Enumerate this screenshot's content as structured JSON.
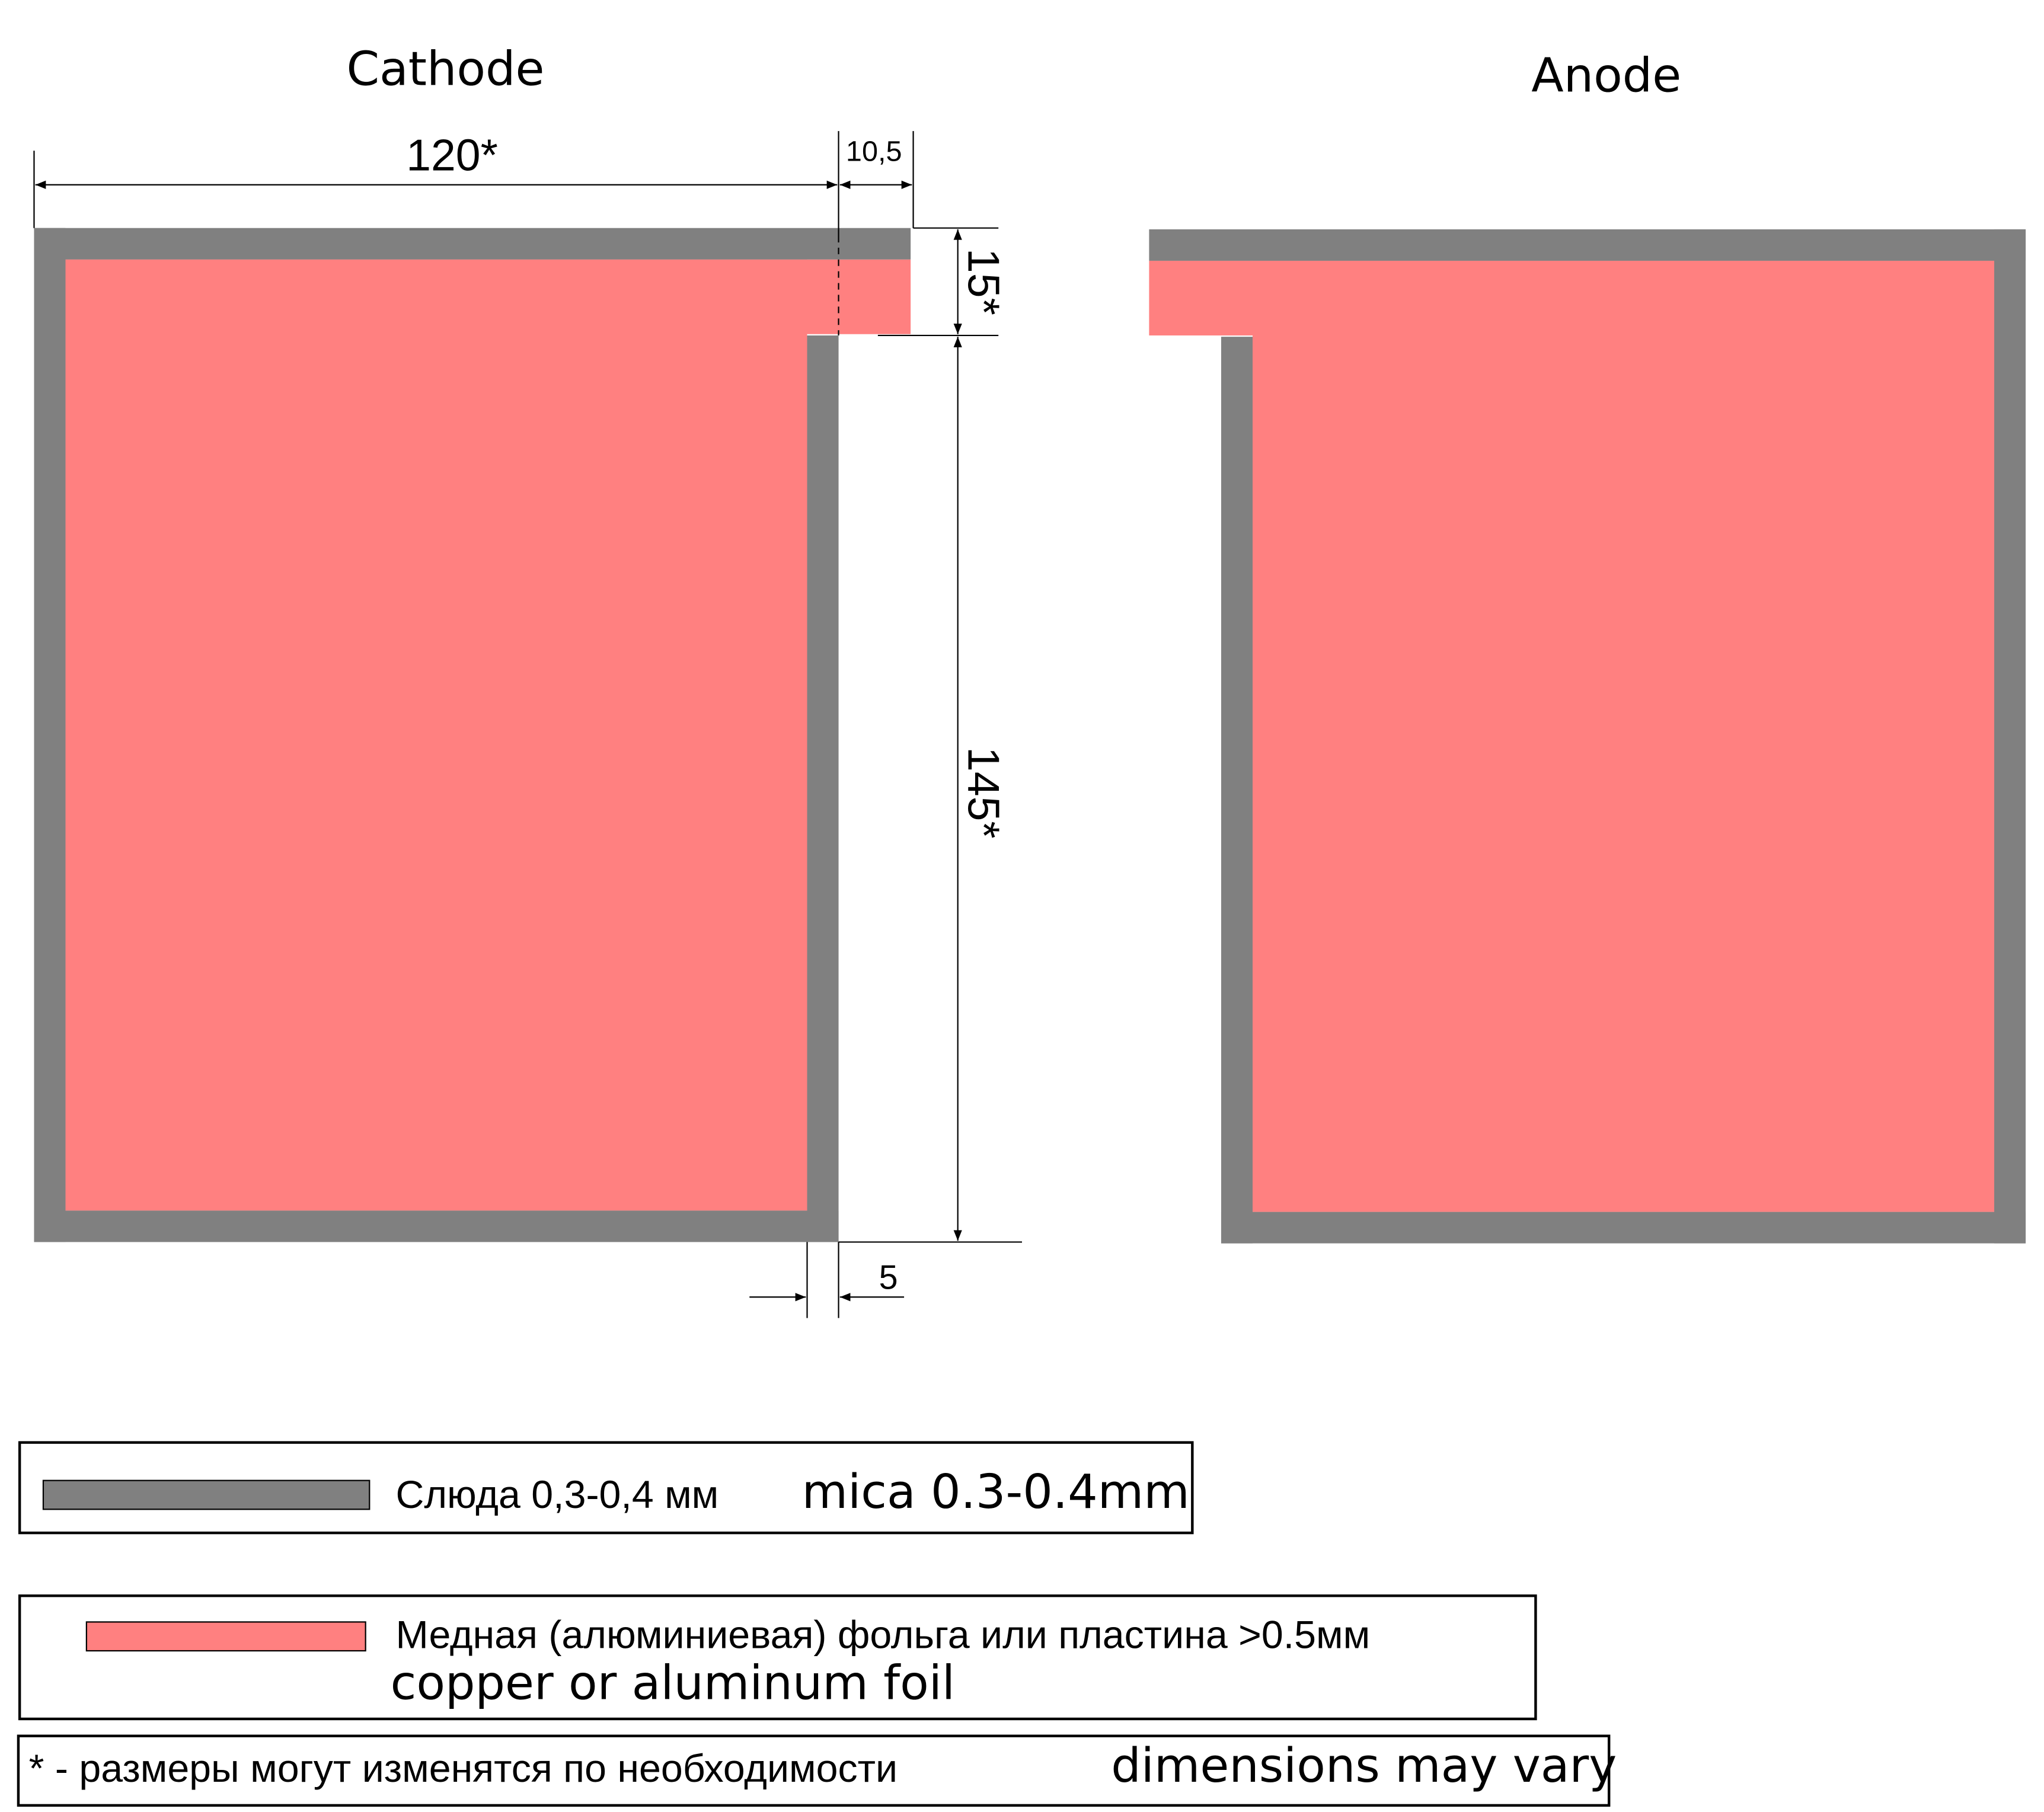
{
  "labels": {
    "cathode": "Cathode",
    "anode": "Anode"
  },
  "dimensions": {
    "width": "120*",
    "tab_width": "10,5",
    "tab_height": "15*",
    "height": "145*",
    "gap": "5"
  },
  "legend": [
    {
      "text": "Слюда 0,3-0,4 мм",
      "translation": "mica 0.3-0.4mm"
    },
    {
      "text": "Медная (алюминиевая) фольга или пластина >0.5мм",
      "translation": "copper or aluminum foil"
    }
  ],
  "note": {
    "text": "* - размеры могут изменятся по необходимости",
    "translation": "dimensions may vary"
  }
}
